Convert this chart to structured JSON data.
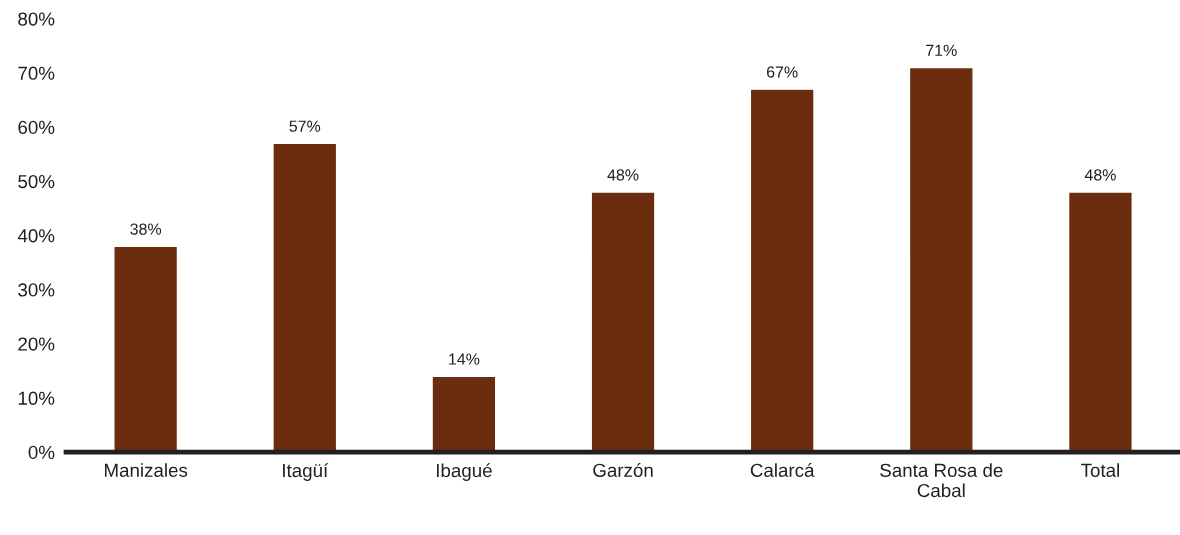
{
  "chart_data": {
    "type": "bar",
    "categories": [
      "Manizales",
      "Itagüí",
      "Ibagué",
      "Garzón",
      "Calarcá",
      "Santa Rosa de\nCabal",
      "Total"
    ],
    "values": [
      38,
      57,
      14,
      48,
      67,
      71,
      48
    ],
    "value_labels": [
      "38%",
      "57%",
      "14%",
      "48%",
      "67%",
      "71%",
      "48%"
    ],
    "color": "#6b2d0e",
    "ylim": [
      0,
      80
    ],
    "yticks": [
      {
        "value": 0,
        "label": "0%"
      },
      {
        "value": 10,
        "label": "10%"
      },
      {
        "value": 20,
        "label": "20%"
      },
      {
        "value": 30,
        "label": "30%"
      },
      {
        "value": 40,
        "label": "40%"
      },
      {
        "value": 50,
        "label": "50%"
      },
      {
        "value": 60,
        "label": "60%"
      },
      {
        "value": 70,
        "label": "70%"
      },
      {
        "value": 80,
        "label": "80%"
      }
    ],
    "grid": false,
    "legend": false
  }
}
